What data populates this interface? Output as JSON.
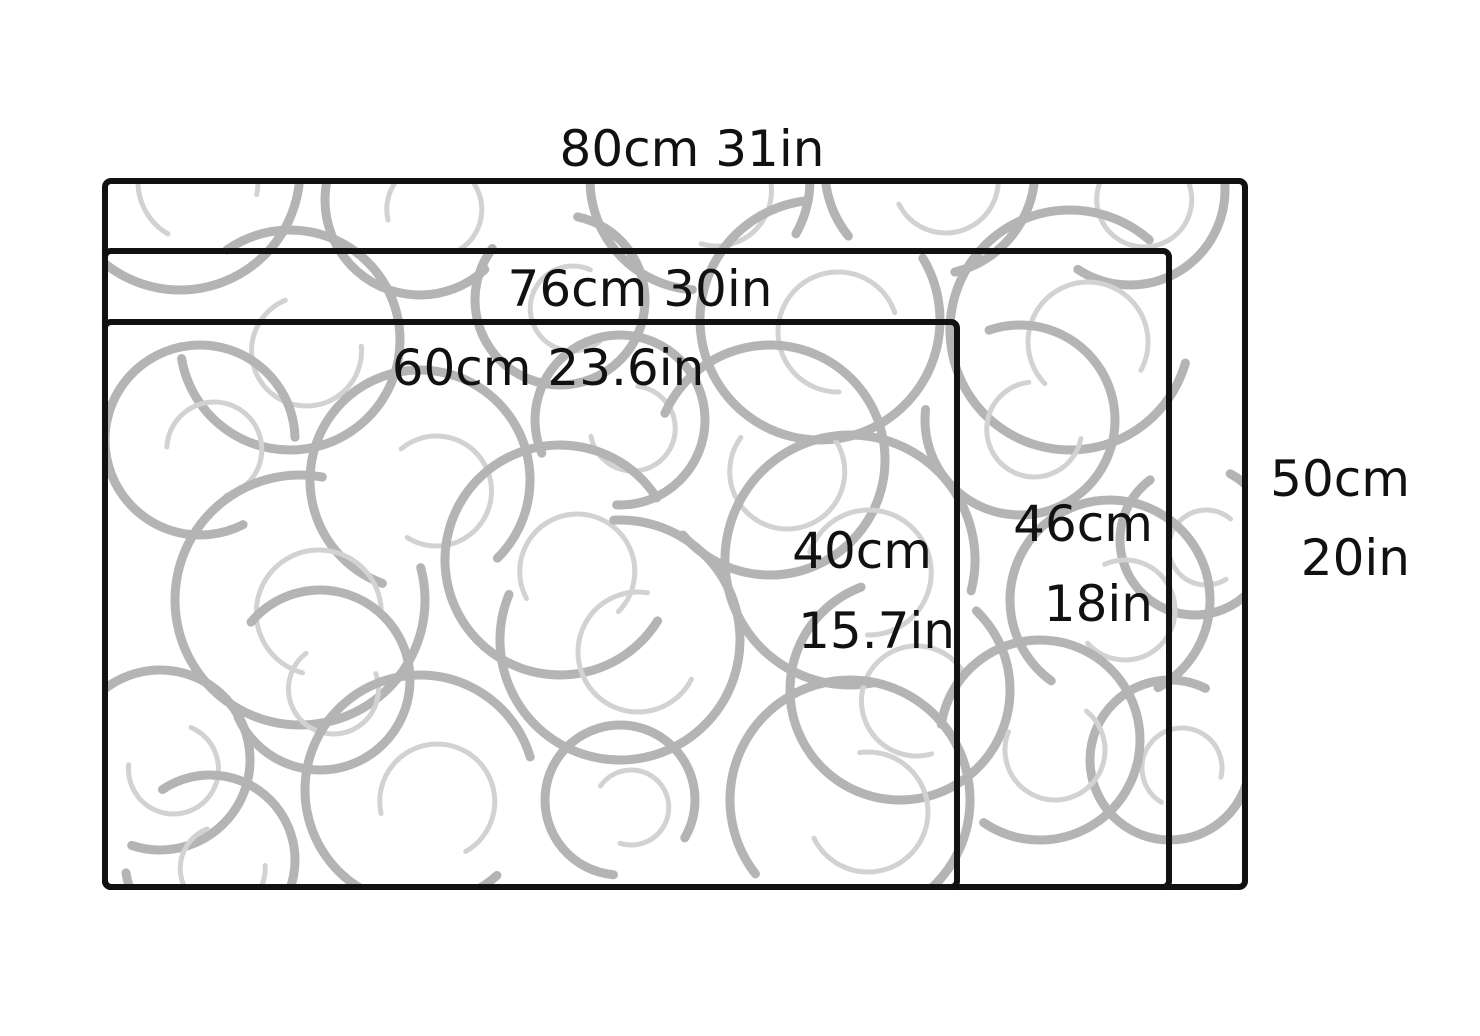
{
  "colors": {
    "outline": "#111111",
    "pattern": "#b4b4b4",
    "pattern_light": "#d2d2d2",
    "background": "#ffffff"
  },
  "sizes": [
    {
      "id": "large",
      "width_label": "80cm 31in",
      "height_label_cm": "50cm",
      "height_label_in": "20in"
    },
    {
      "id": "medium",
      "width_label": "76cm 30in",
      "height_label_cm": "46cm",
      "height_label_in": "18in"
    },
    {
      "id": "small",
      "width_label": "60cm 23.6in",
      "height_label_cm": "40cm",
      "height_label_in": "15.7in"
    }
  ]
}
